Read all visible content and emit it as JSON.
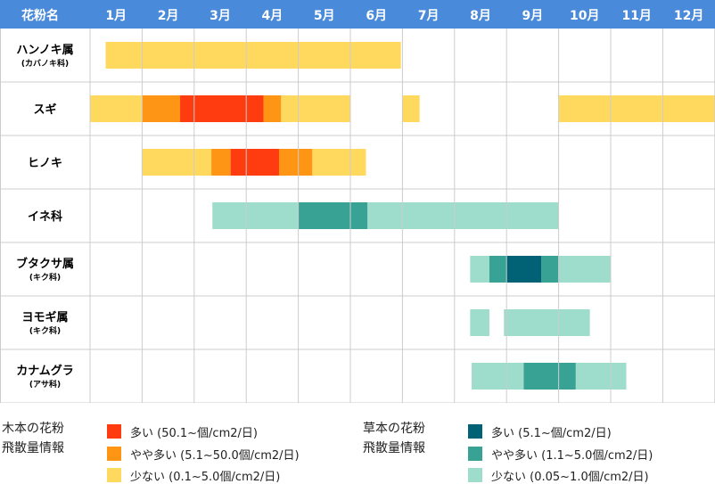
{
  "header": {
    "name_label": "花粉名",
    "months": [
      "1月",
      "2月",
      "3月",
      "4月",
      "5月",
      "6月",
      "7月",
      "8月",
      "9月",
      "10月",
      "11月",
      "12月"
    ]
  },
  "colors": {
    "header_bg": "#4A8ADB",
    "grid": "#cccccc",
    "tree_many": "#FF3B10",
    "tree_some": "#FF9515",
    "tree_few": "#FFD95E",
    "grass_many": "#006274",
    "grass_some": "#38A394",
    "grass_few": "#9EDDCB"
  },
  "chart_data": {
    "type": "gantt",
    "x_axis": "month",
    "rows": [
      {
        "name": "ハンノキ属",
        "sub": "(カバノキ科)",
        "segments": [
          {
            "start": 1.3,
            "end": 6.97,
            "level": "tree_few"
          }
        ]
      },
      {
        "name": "スギ",
        "sub": "",
        "segments": [
          {
            "start": 1.0,
            "end": 2.0,
            "level": "tree_few"
          },
          {
            "start": 2.0,
            "end": 2.73,
            "level": "tree_some"
          },
          {
            "start": 2.73,
            "end": 4.33,
            "level": "tree_many"
          },
          {
            "start": 4.33,
            "end": 4.67,
            "level": "tree_some"
          },
          {
            "start": 4.67,
            "end": 6.0,
            "level": "tree_few"
          },
          {
            "start": 7.0,
            "end": 7.33,
            "level": "tree_few"
          },
          {
            "start": 10.0,
            "end": 13.0,
            "level": "tree_few"
          }
        ]
      },
      {
        "name": "ヒノキ",
        "sub": "",
        "segments": [
          {
            "start": 2.0,
            "end": 3.33,
            "level": "tree_few"
          },
          {
            "start": 3.33,
            "end": 3.7,
            "level": "tree_some"
          },
          {
            "start": 3.7,
            "end": 4.63,
            "level": "tree_many"
          },
          {
            "start": 4.63,
            "end": 5.27,
            "level": "tree_some"
          },
          {
            "start": 5.27,
            "end": 6.3,
            "level": "tree_few"
          }
        ]
      },
      {
        "name": "イネ科",
        "sub": "",
        "segments": [
          {
            "start": 3.35,
            "end": 5.0,
            "level": "grass_few"
          },
          {
            "start": 5.0,
            "end": 6.33,
            "level": "grass_some"
          },
          {
            "start": 6.33,
            "end": 10.0,
            "level": "grass_few"
          }
        ]
      },
      {
        "name": "ブタクサ属",
        "sub": "(キク科)",
        "segments": [
          {
            "start": 8.3,
            "end": 8.67,
            "level": "grass_few"
          },
          {
            "start": 8.67,
            "end": 9.0,
            "level": "grass_some"
          },
          {
            "start": 9.0,
            "end": 9.67,
            "level": "grass_many"
          },
          {
            "start": 9.67,
            "end": 10.0,
            "level": "grass_some"
          },
          {
            "start": 10.0,
            "end": 11.0,
            "level": "grass_few"
          }
        ]
      },
      {
        "name": "ヨモギ属",
        "sub": "(キク科)",
        "segments": [
          {
            "start": 8.3,
            "end": 8.67,
            "level": "grass_few"
          },
          {
            "start": 8.95,
            "end": 10.6,
            "level": "grass_few"
          }
        ]
      },
      {
        "name": "カナムグラ",
        "sub": "(アサ科)",
        "segments": [
          {
            "start": 8.33,
            "end": 9.33,
            "level": "grass_few"
          },
          {
            "start": 9.33,
            "end": 10.33,
            "level": "grass_some"
          },
          {
            "start": 10.33,
            "end": 11.3,
            "level": "grass_few"
          }
        ]
      }
    ]
  },
  "legend": {
    "tree": {
      "title": "木本の花粉\n飛散量情報",
      "items": [
        {
          "color_key": "tree_many",
          "label": "多い (50.1~個/cm2/日)"
        },
        {
          "color_key": "tree_some",
          "label": "やや多い (5.1~50.0個/cm2/日)"
        },
        {
          "color_key": "tree_few",
          "label": "少ない (0.1~5.0個/cm2/日)"
        }
      ]
    },
    "grass": {
      "title": "草本の花粉\n飛散量情報",
      "items": [
        {
          "color_key": "grass_many",
          "label": "多い (5.1~個/cm2/日)"
        },
        {
          "color_key": "grass_some",
          "label": "やや多い (1.1~5.0個/cm2/日)"
        },
        {
          "color_key": "grass_few",
          "label": "少ない (0.05~1.0個/cm2/日)"
        }
      ]
    }
  }
}
